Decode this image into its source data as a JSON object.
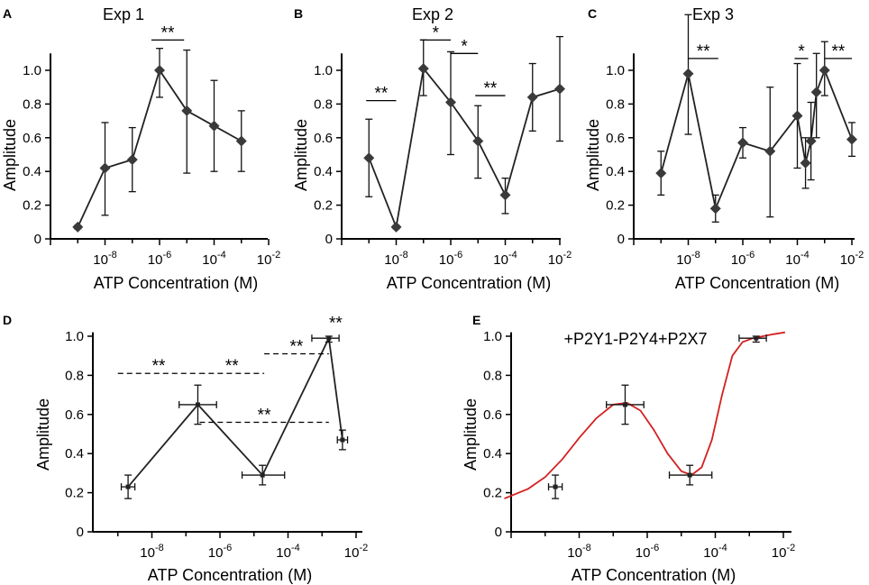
{
  "chart_data": [
    {
      "type": "line",
      "panel": "A",
      "title": "Exp 1",
      "xlabel": "ATP Concentration (M)",
      "ylabel": "Amplitude",
      "xscale": "log",
      "xlim_exp": [
        -10,
        -2
      ],
      "ylim": [
        0,
        1.1
      ],
      "x_ticks": [
        "10-8",
        "10-6",
        "10-4",
        "10-2"
      ],
      "y_ticks": [
        "0",
        "0.2",
        "0.4",
        "0.6",
        "0.8",
        "1.0"
      ],
      "points": [
        {
          "logx": -9.0,
          "y": 0.07,
          "lo": 0.06,
          "hi": 0.08
        },
        {
          "logx": -8.0,
          "y": 0.42,
          "lo": 0.14,
          "hi": 0.69
        },
        {
          "logx": -7.0,
          "y": 0.47,
          "lo": 0.28,
          "hi": 0.66
        },
        {
          "logx": -6.0,
          "y": 1.0,
          "lo": 0.84,
          "hi": 1.13
        },
        {
          "logx": -5.0,
          "y": 0.76,
          "lo": 0.39,
          "hi": 1.12
        },
        {
          "logx": -4.0,
          "y": 0.67,
          "lo": 0.4,
          "hi": 0.94
        },
        {
          "logx": -3.0,
          "y": 0.58,
          "lo": 0.4,
          "hi": 0.76
        }
      ],
      "significance": [
        {
          "label": "**",
          "from": -6.3,
          "to": -5.1,
          "y": 1.18,
          "style": "solid"
        }
      ]
    },
    {
      "type": "line",
      "panel": "B",
      "title": "Exp 2",
      "xlabel": "ATP Concentration (M)",
      "ylabel": "Amplitude",
      "xscale": "log",
      "xlim_exp": [
        -10,
        -2
      ],
      "ylim": [
        0,
        1.1
      ],
      "x_ticks": [
        "10-8",
        "10-6",
        "10-4",
        "10-2"
      ],
      "y_ticks": [
        "0",
        "0.2",
        "0.4",
        "0.6",
        "0.8",
        "1.0"
      ],
      "points": [
        {
          "logx": -9.0,
          "y": 0.48,
          "lo": 0.25,
          "hi": 0.71
        },
        {
          "logx": -8.0,
          "y": 0.07,
          "lo": 0.06,
          "hi": 0.08
        },
        {
          "logx": -7.0,
          "y": 1.01,
          "lo": 0.85,
          "hi": 1.18
        },
        {
          "logx": -6.0,
          "y": 0.81,
          "lo": 0.5,
          "hi": 1.11
        },
        {
          "logx": -5.0,
          "y": 0.58,
          "lo": 0.36,
          "hi": 0.79
        },
        {
          "logx": -4.0,
          "y": 0.26,
          "lo": 0.15,
          "hi": 0.36
        },
        {
          "logx": -3.0,
          "y": 0.84,
          "lo": 0.64,
          "hi": 1.04
        },
        {
          "logx": -2.0,
          "y": 0.89,
          "lo": 0.58,
          "hi": 1.2
        }
      ],
      "significance": [
        {
          "label": "**",
          "from": -9.1,
          "to": -8.0,
          "y": 0.82,
          "style": "solid"
        },
        {
          "label": "*",
          "from": -7.1,
          "to": -6.0,
          "y": 1.18,
          "style": "solid"
        },
        {
          "label": "*",
          "from": -6.0,
          "to": -5.0,
          "y": 1.1,
          "style": "solid"
        },
        {
          "label": "**",
          "from": -5.1,
          "to": -4.0,
          "y": 0.85,
          "style": "solid"
        }
      ]
    },
    {
      "type": "line",
      "panel": "C",
      "title": "Exp 3",
      "xlabel": "ATP Concentration (M)",
      "ylabel": "Amplitude",
      "xscale": "log",
      "xlim_exp": [
        -10,
        -2
      ],
      "ylim": [
        0,
        1.1
      ],
      "x_ticks": [
        "10-8",
        "10-6",
        "10-4",
        "10-2"
      ],
      "y_ticks": [
        "0",
        "0.2",
        "0.4",
        "0.6",
        "0.8",
        "1.0"
      ],
      "points": [
        {
          "logx": -9.0,
          "y": 0.39,
          "lo": 0.26,
          "hi": 0.52
        },
        {
          "logx": -8.0,
          "y": 0.98,
          "lo": 0.62,
          "hi": 1.33
        },
        {
          "logx": -7.0,
          "y": 0.18,
          "lo": 0.1,
          "hi": 0.26
        },
        {
          "logx": -6.0,
          "y": 0.57,
          "lo": 0.48,
          "hi": 0.66
        },
        {
          "logx": -5.0,
          "y": 0.52,
          "lo": 0.13,
          "hi": 0.9
        },
        {
          "logx": -4.0,
          "y": 0.73,
          "lo": 0.42,
          "hi": 1.04
        },
        {
          "logx": -3.7,
          "y": 0.45,
          "lo": 0.3,
          "hi": 0.6
        },
        {
          "logx": -3.5,
          "y": 0.58,
          "lo": 0.35,
          "hi": 0.81
        },
        {
          "logx": -3.3,
          "y": 0.87,
          "lo": 0.6,
          "hi": 1.1
        },
        {
          "logx": -3.0,
          "y": 1.0,
          "lo": 0.85,
          "hi": 1.17
        },
        {
          "logx": -2.0,
          "y": 0.59,
          "lo": 0.49,
          "hi": 0.69
        }
      ],
      "significance": [
        {
          "label": "**",
          "from": -8.0,
          "to": -6.9,
          "y": 1.07,
          "style": "solid"
        },
        {
          "label": "*",
          "from": -4.1,
          "to": -3.6,
          "y": 1.07,
          "style": "solid"
        },
        {
          "label": "**",
          "from": -3.0,
          "to": -2.0,
          "y": 1.07,
          "style": "solid"
        }
      ]
    },
    {
      "type": "line",
      "panel": "D",
      "title": "",
      "xlabel": "ATP Concentration (M)",
      "ylabel": "Amplitude",
      "xscale": "log",
      "xlim_exp": [
        -10,
        -2
      ],
      "ylim": [
        0,
        1.0
      ],
      "x_ticks": [
        "10-8",
        "10-6",
        "10-4",
        "10-2"
      ],
      "y_ticks": [
        "0",
        "0.2",
        "0.4",
        "0.6",
        "0.8",
        "1.0"
      ],
      "points": [
        {
          "logx": -8.7,
          "y": 0.23,
          "lo": 0.17,
          "hi": 0.29,
          "xlo": -8.9,
          "xhi": -8.5
        },
        {
          "logx": -6.65,
          "y": 0.65,
          "lo": 0.55,
          "hi": 0.75,
          "xlo": -7.2,
          "xhi": -6.1
        },
        {
          "logx": -4.75,
          "y": 0.29,
          "lo": 0.24,
          "hi": 0.34,
          "xlo": -5.35,
          "xhi": -4.1
        },
        {
          "logx": -2.8,
          "y": 0.99,
          "lo": 0.97,
          "hi": 1.0,
          "xlo": -3.3,
          "xhi": -2.5
        },
        {
          "logx": -2.4,
          "y": 0.47,
          "lo": 0.42,
          "hi": 0.52,
          "xlo": -2.55,
          "xhi": -2.25
        }
      ],
      "significance": [
        {
          "label": "**",
          "from": -9.0,
          "to": -6.6,
          "y": 0.81,
          "style": "dashed"
        },
        {
          "label": "**",
          "from": -6.6,
          "to": -4.7,
          "y": 0.81,
          "style": "dashed"
        },
        {
          "label": "**",
          "from": -4.7,
          "to": -2.8,
          "y": 0.91,
          "style": "dashed"
        },
        {
          "label": "**",
          "from": -6.6,
          "to": -2.8,
          "y": 0.56,
          "style": "dashed"
        },
        {
          "label": "**",
          "from": -2.8,
          "to": -2.4,
          "y": 1.03,
          "style": "none"
        }
      ]
    },
    {
      "type": "line",
      "panel": "E",
      "title": "+P2Y1-P2Y4+P2X7",
      "xlabel": "ATP Concentration (M)",
      "ylabel": "Amplitude",
      "xscale": "log",
      "xlim_exp": [
        -10,
        -2
      ],
      "ylim": [
        0,
        1.0
      ],
      "x_ticks": [
        "10-8",
        "10-6",
        "10-4",
        "10-2"
      ],
      "y_ticks": [
        "0",
        "0.2",
        "0.4",
        "0.6",
        "0.8",
        "1.0"
      ],
      "points": [
        {
          "logx": -8.7,
          "y": 0.23,
          "lo": 0.17,
          "hi": 0.29,
          "xlo": -8.9,
          "xhi": -8.5
        },
        {
          "logx": -6.65,
          "y": 0.65,
          "lo": 0.55,
          "hi": 0.75,
          "xlo": -7.2,
          "xhi": -6.1
        },
        {
          "logx": -4.75,
          "y": 0.29,
          "lo": 0.24,
          "hi": 0.34,
          "xlo": -5.35,
          "xhi": -4.1
        },
        {
          "logx": -2.8,
          "y": 0.99,
          "lo": 0.97,
          "hi": 1.0,
          "xlo": -3.3,
          "xhi": -2.5
        }
      ],
      "fit": {
        "color": "#d42020",
        "logx": [
          -10.2,
          -9.5,
          -9.0,
          -8.5,
          -8.0,
          -7.5,
          -7.0,
          -6.6,
          -6.2,
          -5.8,
          -5.4,
          -5.0,
          -4.7,
          -4.4,
          -4.1,
          -3.8,
          -3.5,
          -3.2,
          -2.9,
          -2.6,
          -2.3,
          -1.95
        ],
        "y": [
          0.17,
          0.22,
          0.28,
          0.37,
          0.48,
          0.58,
          0.65,
          0.66,
          0.62,
          0.52,
          0.4,
          0.31,
          0.29,
          0.33,
          0.47,
          0.7,
          0.9,
          0.97,
          0.99,
          1.0,
          1.01,
          1.02
        ]
      },
      "significance": []
    }
  ]
}
